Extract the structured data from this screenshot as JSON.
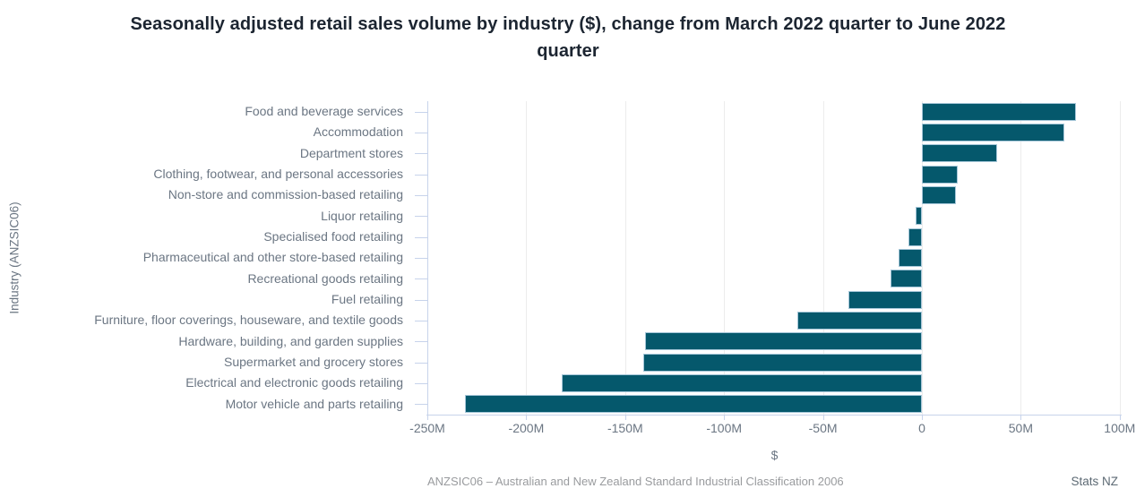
{
  "header": {
    "title_line1": "Seasonally adjusted retail sales volume by industry ($), change from March 2022 quarter to June 2022",
    "title_line2": "quarter"
  },
  "colors": {
    "bar": "#05586C",
    "bar_border": "#A5C6D8",
    "gridline": "#ECECEC",
    "axis_line": "#C7D3EB",
    "text_label": "#6B7683",
    "title_text": "#1C2531",
    "footnote_text": "#999B9E",
    "attribution_text": "#5D6A74"
  },
  "chart_data": {
    "type": "bar",
    "orientation": "horizontal",
    "title": "Seasonally adjusted retail sales volume by industry ($), change from March 2022 quarter to June 2022 quarter",
    "xlabel": "$",
    "ylabel": "Industry (ANZSIC06)",
    "footnote": "ANZSIC06 – Australian and New Zealand Standard Industrial Classification 2006",
    "attribution": "Stats NZ",
    "unit": "millions of dollars",
    "xlim": [
      -250,
      101
    ],
    "grid": "vertical",
    "legend": "none",
    "xticks": [
      {
        "value": -250,
        "label": "-250M"
      },
      {
        "value": -200,
        "label": "-200M"
      },
      {
        "value": -150,
        "label": "-150M"
      },
      {
        "value": -100,
        "label": "-100M"
      },
      {
        "value": -50,
        "label": "-50M"
      },
      {
        "value": 0,
        "label": "0"
      },
      {
        "value": 50,
        "label": "50M"
      },
      {
        "value": 100,
        "label": "100M"
      }
    ],
    "categories": [
      "Food and beverage services",
      "Accommodation",
      "Department stores",
      "Clothing, footwear, and personal accessories",
      "Non-store and commission-based retailing",
      "Liquor retailing",
      "Specialised food retailing",
      "Pharmaceutical and other store-based retailing",
      "Recreational goods retailing",
      "Fuel retailing",
      "Furniture, floor coverings, houseware, and textile goods",
      "Hardware, building, and garden supplies",
      "Supermarket and grocery stores",
      "Electrical and electronic goods retailing",
      "Motor vehicle and parts retailing"
    ],
    "values": [
      78,
      72,
      38,
      18,
      17,
      -3,
      -7,
      -12,
      -16,
      -37,
      -63,
      -140,
      -141,
      -182,
      -231
    ]
  }
}
